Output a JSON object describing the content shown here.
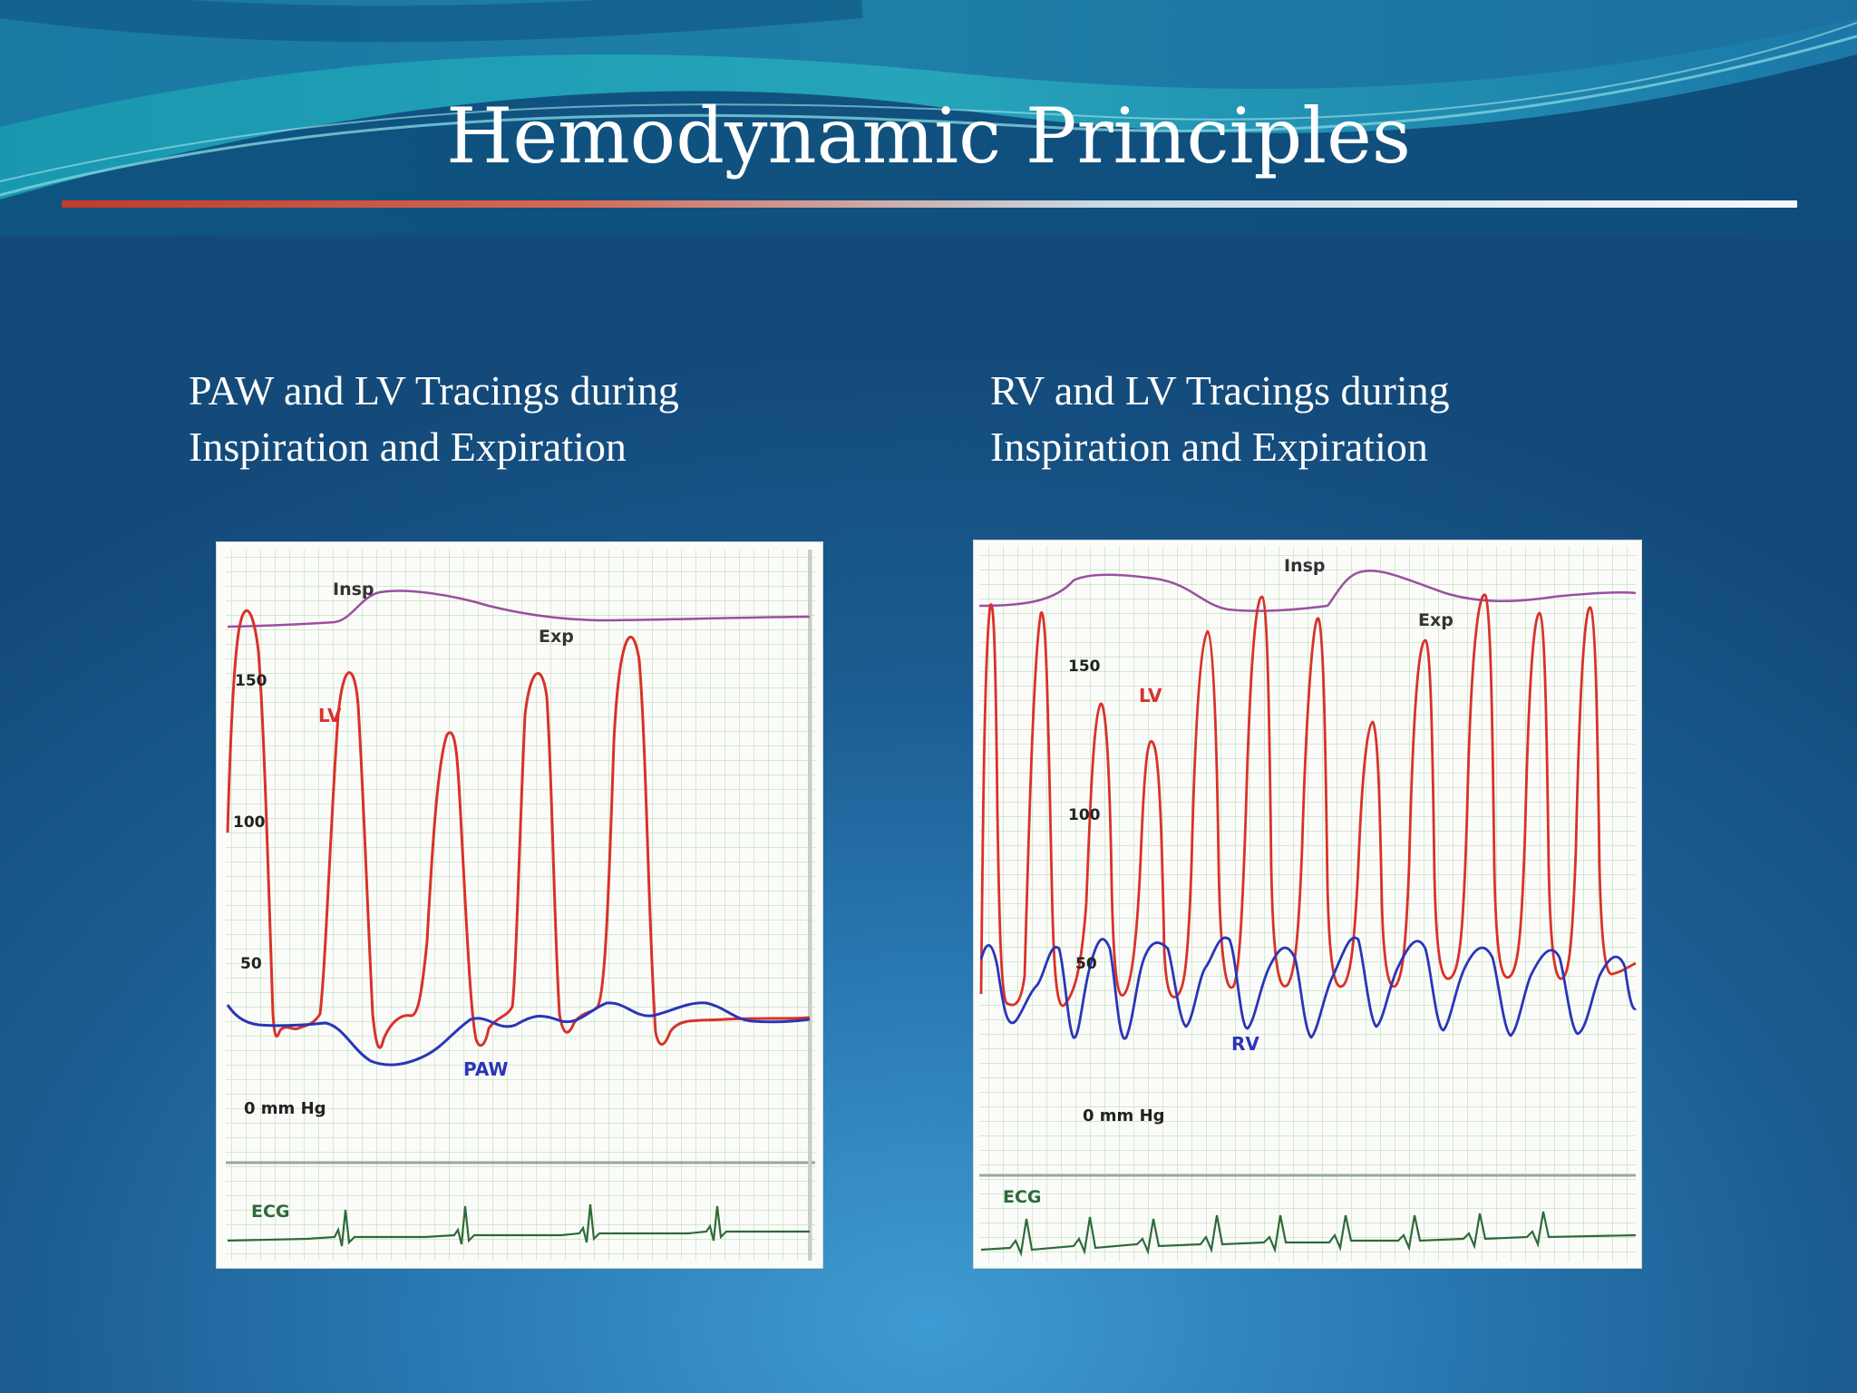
{
  "slide": {
    "title": "Hemodynamic Principles",
    "colors": {
      "title_rule_start": "#c23a2a",
      "title_rule_end": "#f4f8fb",
      "background": "#1b5d92"
    }
  },
  "left_panel": {
    "caption_line1": "PAW and LV Tracings during",
    "caption_line2": "Inspiration and Expiration",
    "figure": {
      "insp_label": "Insp",
      "exp_label": "Exp",
      "lv_label": "LV",
      "paw_label": "PAW",
      "tick_150": "150",
      "tick_100": "100",
      "tick_50": "50",
      "zero_label": "0 mm Hg",
      "ecg_label": "ECG"
    }
  },
  "right_panel": {
    "caption_line1": "RV and LV Tracings during",
    "caption_line2": "Inspiration and Expiration",
    "figure": {
      "insp_label": "Insp",
      "exp_label": "Exp",
      "lv_label": "LV",
      "rv_label": "RV",
      "tick_150": "150",
      "tick_100": "100",
      "tick_50": "50",
      "zero_label": "0 mm Hg",
      "ecg_label": "ECG"
    }
  },
  "trace_colors": {
    "lv": "#d8322a",
    "paw": "#2a35b8",
    "rv": "#2a35b8",
    "respiration": "#9a4fa0",
    "ecg": "#2e6a3a",
    "grid": "#b9d9b6"
  }
}
